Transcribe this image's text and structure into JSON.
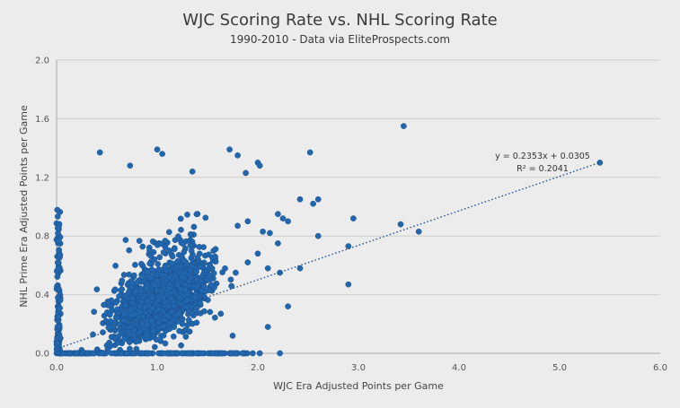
{
  "chart_data": {
    "type": "scatter",
    "title": "WJC Scoring Rate vs. NHL Scoring Rate",
    "subtitle": "1990-2010 - Data via EliteProspects.com",
    "xlabel": "WJC Era Adjusted Points per Game",
    "ylabel": "NHL Prime Era Adjusted Points per Game",
    "xlim": [
      0,
      6
    ],
    "ylim": [
      0,
      2
    ],
    "xticks": [
      "0.0",
      "1.0",
      "2.0",
      "3.0",
      "4.0",
      "5.0",
      "6.0"
    ],
    "yticks": [
      "0.0",
      "0.4",
      "0.8",
      "1.2",
      "1.6",
      "2.0"
    ],
    "grid": "horizontal",
    "series_color": "#2266ae",
    "trendline": {
      "slope": 0.2353,
      "intercept": 0.0305,
      "equation": "y = 0.2353x + 0.0305",
      "r_squared": "R² = 0.2041",
      "x_range": [
        0,
        5.4
      ]
    },
    "outliers": [
      [
        5.4,
        1.3
      ],
      [
        3.45,
        1.55
      ],
      [
        3.6,
        0.83
      ],
      [
        3.42,
        0.88
      ],
      [
        2.95,
        0.92
      ],
      [
        2.9,
        0.73
      ],
      [
        2.9,
        0.47
      ],
      [
        2.6,
        1.05
      ],
      [
        2.55,
        1.02
      ],
      [
        2.6,
        0.8
      ],
      [
        2.42,
        1.05
      ],
      [
        2.52,
        1.37
      ],
      [
        2.42,
        0.58
      ],
      [
        2.22,
        0.55
      ],
      [
        2.3,
        0.32
      ],
      [
        2.25,
        0.92
      ],
      [
        2.3,
        0.9
      ],
      [
        2.2,
        0.95
      ],
      [
        2.0,
        1.3
      ],
      [
        2.02,
        1.28
      ],
      [
        1.72,
        1.39
      ],
      [
        1.8,
        1.35
      ],
      [
        1.88,
        1.23
      ],
      [
        1.0,
        1.39
      ],
      [
        0.43,
        1.37
      ],
      [
        0.73,
        1.28
      ],
      [
        1.05,
        1.36
      ],
      [
        1.35,
        1.24
      ],
      [
        1.8,
        0.87
      ],
      [
        1.9,
        0.9
      ],
      [
        2.05,
        0.83
      ],
      [
        2.12,
        0.82
      ],
      [
        2.2,
        0.75
      ],
      [
        1.9,
        0.62
      ],
      [
        2.0,
        0.68
      ],
      [
        2.1,
        0.58
      ],
      [
        1.78,
        0.55
      ],
      [
        2.1,
        0.18
      ],
      [
        1.75,
        0.12
      ],
      [
        2.22,
        0.0
      ],
      [
        1.95,
        0.0
      ],
      [
        2.02,
        0.0
      ],
      [
        1.65,
        0.0
      ],
      [
        1.55,
        0.0
      ]
    ],
    "cluster": {
      "count": 1600,
      "seed": 42,
      "x_range": [
        0.05,
        1.75
      ],
      "y_range": [
        0.0,
        1.2
      ],
      "zero_line_count": 170,
      "y_axis_line_count": 90
    }
  }
}
